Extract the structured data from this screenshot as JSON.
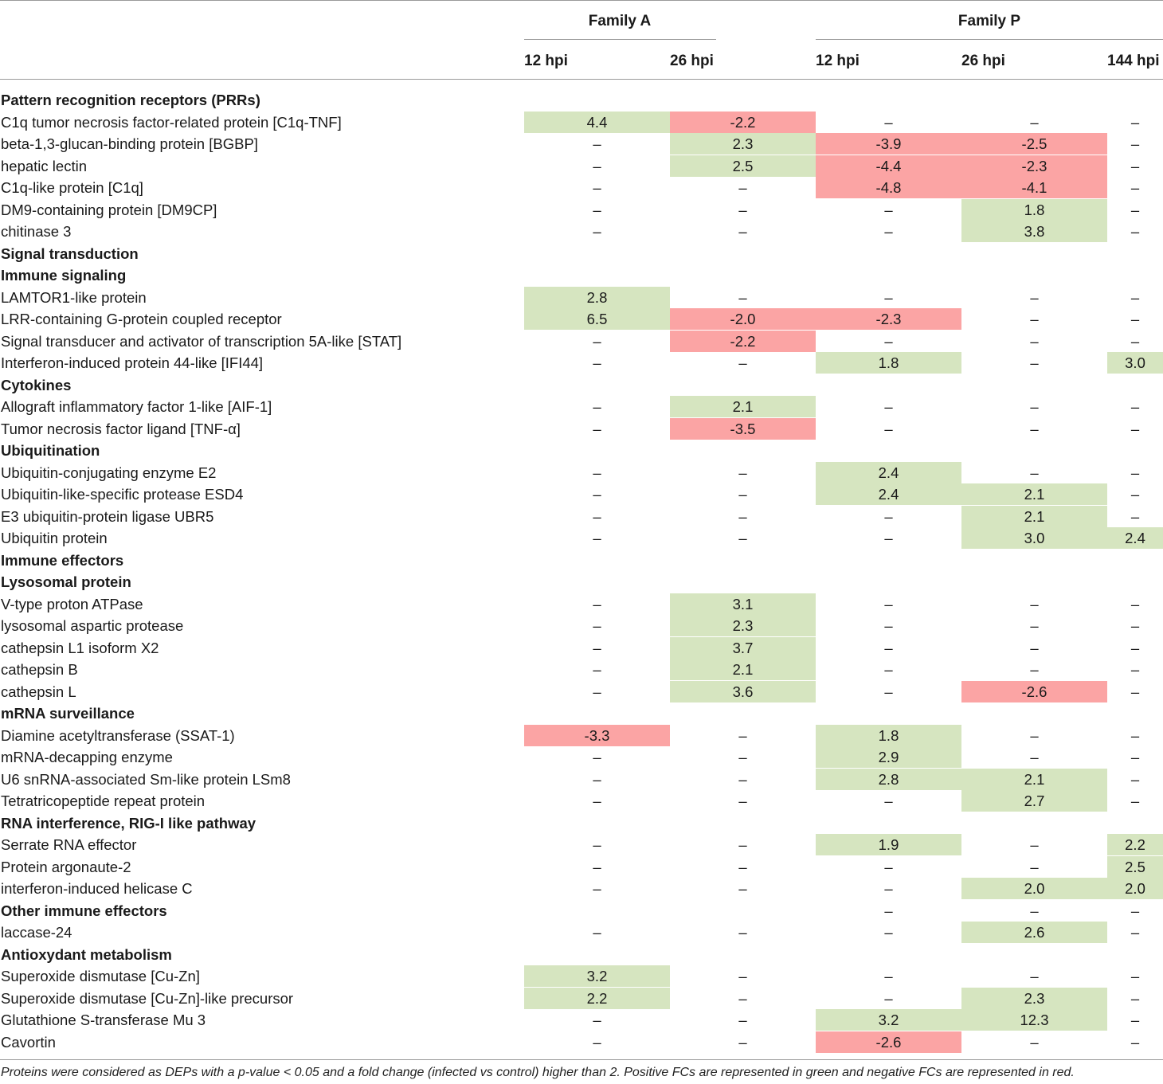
{
  "header": {
    "families": [
      {
        "label": "Family A"
      },
      {
        "label": "Family P"
      }
    ],
    "columns": [
      {
        "label": "12 hpi"
      },
      {
        "label": "26 hpi"
      },
      {
        "label": "12 hpi"
      },
      {
        "label": "26 hpi"
      },
      {
        "label": "144 hpi"
      }
    ]
  },
  "rows": [
    {
      "type": "category",
      "label": "Pattern recognition receptors (PRRs)",
      "cells": [
        null,
        null,
        null,
        null,
        null
      ]
    },
    {
      "type": "item",
      "label": "C1q tumor necrosis factor-related protein [C1q-TNF]",
      "cells": [
        {
          "v": "4.4",
          "s": "pos"
        },
        {
          "v": "-2.2",
          "s": "neg"
        },
        {
          "v": "–",
          "s": ""
        },
        {
          "v": "–",
          "s": ""
        },
        {
          "v": "–",
          "s": ""
        }
      ]
    },
    {
      "type": "item",
      "label": "beta-1,3-glucan-binding protein [BGBP]",
      "cells": [
        {
          "v": "–",
          "s": ""
        },
        {
          "v": "2.3",
          "s": "pos"
        },
        {
          "v": "-3.9",
          "s": "neg"
        },
        {
          "v": "-2.5",
          "s": "neg"
        },
        {
          "v": "–",
          "s": ""
        }
      ]
    },
    {
      "type": "item",
      "label": "hepatic lectin",
      "cells": [
        {
          "v": "–",
          "s": ""
        },
        {
          "v": "2.5",
          "s": "pos"
        },
        {
          "v": "-4.4",
          "s": "neg"
        },
        {
          "v": "-2.3",
          "s": "neg"
        },
        {
          "v": "–",
          "s": ""
        }
      ]
    },
    {
      "type": "item",
      "label": "C1q-like protein [C1q]",
      "cells": [
        {
          "v": "–",
          "s": ""
        },
        {
          "v": "–",
          "s": ""
        },
        {
          "v": "-4.8",
          "s": "neg"
        },
        {
          "v": "-4.1",
          "s": "neg"
        },
        {
          "v": "–",
          "s": ""
        }
      ]
    },
    {
      "type": "item",
      "label": "DM9-containing protein [DM9CP]",
      "cells": [
        {
          "v": "–",
          "s": ""
        },
        {
          "v": "–",
          "s": ""
        },
        {
          "v": "–",
          "s": ""
        },
        {
          "v": "1.8",
          "s": "pos"
        },
        {
          "v": "–",
          "s": ""
        }
      ]
    },
    {
      "type": "item",
      "label": "chitinase 3",
      "cells": [
        {
          "v": "–",
          "s": ""
        },
        {
          "v": "–",
          "s": ""
        },
        {
          "v": "–",
          "s": ""
        },
        {
          "v": "3.8",
          "s": "pos"
        },
        {
          "v": "–",
          "s": ""
        }
      ]
    },
    {
      "type": "category",
      "label": "Signal transduction",
      "cells": [
        null,
        null,
        null,
        null,
        null
      ]
    },
    {
      "type": "category",
      "label": "Immune signaling",
      "cells": [
        null,
        null,
        null,
        null,
        null
      ]
    },
    {
      "type": "item",
      "label": "LAMTOR1-like protein",
      "cells": [
        {
          "v": "2.8",
          "s": "pos"
        },
        {
          "v": "–",
          "s": ""
        },
        {
          "v": "–",
          "s": ""
        },
        {
          "v": "–",
          "s": ""
        },
        {
          "v": "–",
          "s": ""
        }
      ]
    },
    {
      "type": "item",
      "label": "LRR-containing G-protein coupled receptor",
      "cells": [
        {
          "v": "6.5",
          "s": "pos"
        },
        {
          "v": "-2.0",
          "s": "neg"
        },
        {
          "v": "-2.3",
          "s": "neg"
        },
        {
          "v": "–",
          "s": ""
        },
        {
          "v": "–",
          "s": ""
        }
      ]
    },
    {
      "type": "item",
      "label": "Signal transducer and activator of transcription 5A-like [STAT]",
      "cells": [
        {
          "v": "–",
          "s": ""
        },
        {
          "v": "-2.2",
          "s": "neg"
        },
        {
          "v": "–",
          "s": ""
        },
        {
          "v": "–",
          "s": ""
        },
        {
          "v": "–",
          "s": ""
        }
      ]
    },
    {
      "type": "item",
      "label": "Interferon-induced protein 44-like [IFI44]",
      "cells": [
        {
          "v": "–",
          "s": ""
        },
        {
          "v": "–",
          "s": ""
        },
        {
          "v": "1.8",
          "s": "pos"
        },
        {
          "v": "–",
          "s": ""
        },
        {
          "v": "3.0",
          "s": "pos"
        }
      ]
    },
    {
      "type": "category",
      "label": "Cytokines",
      "cells": [
        null,
        null,
        null,
        null,
        null
      ]
    },
    {
      "type": "item",
      "label": "Allograft inflammatory factor 1-like [AIF-1]",
      "cells": [
        {
          "v": "–",
          "s": ""
        },
        {
          "v": "2.1",
          "s": "pos"
        },
        {
          "v": "–",
          "s": ""
        },
        {
          "v": "–",
          "s": ""
        },
        {
          "v": "–",
          "s": ""
        }
      ]
    },
    {
      "type": "item",
      "label": "Tumor necrosis factor ligand [TNF-α]",
      "cells": [
        {
          "v": "–",
          "s": ""
        },
        {
          "v": "-3.5",
          "s": "neg"
        },
        {
          "v": "–",
          "s": ""
        },
        {
          "v": "–",
          "s": ""
        },
        {
          "v": "–",
          "s": ""
        }
      ]
    },
    {
      "type": "category",
      "label": "Ubiquitination",
      "cells": [
        null,
        null,
        null,
        null,
        null
      ]
    },
    {
      "type": "item",
      "label": "Ubiquitin-conjugating enzyme E2",
      "cells": [
        {
          "v": "–",
          "s": ""
        },
        {
          "v": "–",
          "s": ""
        },
        {
          "v": "2.4",
          "s": "pos"
        },
        {
          "v": "–",
          "s": ""
        },
        {
          "v": "–",
          "s": ""
        }
      ]
    },
    {
      "type": "item",
      "label": "Ubiquitin-like-specific protease ESD4",
      "cells": [
        {
          "v": "–",
          "s": ""
        },
        {
          "v": "–",
          "s": ""
        },
        {
          "v": "2.4",
          "s": "pos"
        },
        {
          "v": "2.1",
          "s": "pos"
        },
        {
          "v": "–",
          "s": ""
        }
      ]
    },
    {
      "type": "item",
      "label": "E3 ubiquitin-protein ligase UBR5",
      "cells": [
        {
          "v": "–",
          "s": ""
        },
        {
          "v": "–",
          "s": ""
        },
        {
          "v": "–",
          "s": ""
        },
        {
          "v": "2.1",
          "s": "pos"
        },
        {
          "v": "–",
          "s": ""
        }
      ]
    },
    {
      "type": "item",
      "label": "Ubiquitin protein",
      "cells": [
        {
          "v": "–",
          "s": ""
        },
        {
          "v": "–",
          "s": ""
        },
        {
          "v": "–",
          "s": ""
        },
        {
          "v": "3.0",
          "s": "pos"
        },
        {
          "v": "2.4",
          "s": "pos"
        }
      ]
    },
    {
      "type": "category",
      "label": "Immune effectors",
      "cells": [
        null,
        null,
        null,
        null,
        null
      ]
    },
    {
      "type": "category",
      "label": "Lysosomal protein",
      "cells": [
        null,
        null,
        null,
        null,
        null
      ]
    },
    {
      "type": "item",
      "label": "V-type proton ATPase",
      "cells": [
        {
          "v": "–",
          "s": ""
        },
        {
          "v": "3.1",
          "s": "pos"
        },
        {
          "v": "–",
          "s": ""
        },
        {
          "v": "–",
          "s": ""
        },
        {
          "v": "–",
          "s": ""
        }
      ]
    },
    {
      "type": "item",
      "label": "lysosomal aspartic protease",
      "cells": [
        {
          "v": "–",
          "s": ""
        },
        {
          "v": "2.3",
          "s": "pos"
        },
        {
          "v": "–",
          "s": ""
        },
        {
          "v": "–",
          "s": ""
        },
        {
          "v": "–",
          "s": ""
        }
      ]
    },
    {
      "type": "item",
      "label": "cathepsin L1 isoform X2",
      "cells": [
        {
          "v": "–",
          "s": ""
        },
        {
          "v": "3.7",
          "s": "pos"
        },
        {
          "v": "–",
          "s": ""
        },
        {
          "v": "–",
          "s": ""
        },
        {
          "v": "–",
          "s": ""
        }
      ]
    },
    {
      "type": "item",
      "label": "cathepsin B",
      "cells": [
        {
          "v": "–",
          "s": ""
        },
        {
          "v": "2.1",
          "s": "pos"
        },
        {
          "v": "–",
          "s": ""
        },
        {
          "v": "–",
          "s": ""
        },
        {
          "v": "–",
          "s": ""
        }
      ]
    },
    {
      "type": "item",
      "label": "cathepsin L",
      "cells": [
        {
          "v": "–",
          "s": ""
        },
        {
          "v": "3.6",
          "s": "pos"
        },
        {
          "v": "–",
          "s": ""
        },
        {
          "v": "-2.6",
          "s": "neg"
        },
        {
          "v": "–",
          "s": ""
        }
      ]
    },
    {
      "type": "category",
      "label": "mRNA surveillance",
      "cells": [
        null,
        null,
        null,
        null,
        null
      ]
    },
    {
      "type": "item",
      "label": "Diamine acetyltransferase (SSAT-1)",
      "cells": [
        {
          "v": "-3.3",
          "s": "neg"
        },
        {
          "v": "–",
          "s": ""
        },
        {
          "v": "1.8",
          "s": "pos"
        },
        {
          "v": "–",
          "s": ""
        },
        {
          "v": "–",
          "s": ""
        }
      ]
    },
    {
      "type": "item",
      "label": "mRNA-decapping enzyme",
      "cells": [
        {
          "v": "–",
          "s": ""
        },
        {
          "v": "–",
          "s": ""
        },
        {
          "v": "2.9",
          "s": "pos"
        },
        {
          "v": "–",
          "s": ""
        },
        {
          "v": "–",
          "s": ""
        }
      ]
    },
    {
      "type": "item",
      "label": "U6 snRNA-associated Sm-like protein LSm8",
      "cells": [
        {
          "v": "–",
          "s": ""
        },
        {
          "v": "–",
          "s": ""
        },
        {
          "v": "2.8",
          "s": "pos"
        },
        {
          "v": "2.1",
          "s": "pos"
        },
        {
          "v": "–",
          "s": ""
        }
      ]
    },
    {
      "type": "item",
      "label": "Tetratricopeptide repeat protein",
      "cells": [
        {
          "v": "–",
          "s": ""
        },
        {
          "v": "–",
          "s": ""
        },
        {
          "v": "–",
          "s": ""
        },
        {
          "v": "2.7",
          "s": "pos"
        },
        {
          "v": "–",
          "s": ""
        }
      ]
    },
    {
      "type": "category",
      "label": "RNA interference, RIG-I like pathway",
      "cells": [
        null,
        null,
        null,
        null,
        null
      ]
    },
    {
      "type": "item",
      "label": "Serrate RNA effector",
      "cells": [
        {
          "v": "–",
          "s": ""
        },
        {
          "v": "–",
          "s": ""
        },
        {
          "v": "1.9",
          "s": "pos"
        },
        {
          "v": "–",
          "s": ""
        },
        {
          "v": "2.2",
          "s": "pos"
        }
      ]
    },
    {
      "type": "item",
      "label": "Protein argonaute-2",
      "cells": [
        {
          "v": "–",
          "s": ""
        },
        {
          "v": "–",
          "s": ""
        },
        {
          "v": "–",
          "s": ""
        },
        {
          "v": "–",
          "s": ""
        },
        {
          "v": "2.5",
          "s": "pos"
        }
      ]
    },
    {
      "type": "item",
      "label": "interferon-induced helicase C",
      "cells": [
        {
          "v": "–",
          "s": ""
        },
        {
          "v": "–",
          "s": ""
        },
        {
          "v": "–",
          "s": ""
        },
        {
          "v": "2.0",
          "s": "pos"
        },
        {
          "v": "2.0",
          "s": "pos"
        }
      ]
    },
    {
      "type": "category",
      "label": "Other immune effectors",
      "cells": [
        null,
        null,
        {
          "v": "–",
          "s": ""
        },
        {
          "v": "–",
          "s": ""
        },
        {
          "v": "–",
          "s": ""
        }
      ]
    },
    {
      "type": "item",
      "label": "laccase-24",
      "cells": [
        {
          "v": "–",
          "s": ""
        },
        {
          "v": "–",
          "s": ""
        },
        {
          "v": "–",
          "s": ""
        },
        {
          "v": "2.6",
          "s": "pos"
        },
        {
          "v": "–",
          "s": ""
        }
      ]
    },
    {
      "type": "category",
      "label": "Antioxydant metabolism",
      "cells": [
        null,
        null,
        null,
        null,
        null
      ]
    },
    {
      "type": "item",
      "label": "Superoxide dismutase [Cu-Zn]",
      "cells": [
        {
          "v": "3.2",
          "s": "pos"
        },
        {
          "v": "–",
          "s": ""
        },
        {
          "v": "–",
          "s": ""
        },
        {
          "v": "–",
          "s": ""
        },
        {
          "v": "–",
          "s": ""
        }
      ]
    },
    {
      "type": "item",
      "label": "Superoxide dismutase [Cu-Zn]-like precursor",
      "cells": [
        {
          "v": "2.2",
          "s": "pos"
        },
        {
          "v": "–",
          "s": ""
        },
        {
          "v": "–",
          "s": ""
        },
        {
          "v": "2.3",
          "s": "pos"
        },
        {
          "v": "–",
          "s": ""
        }
      ]
    },
    {
      "type": "item",
      "label": "Glutathione S-transferase Mu 3",
      "cells": [
        {
          "v": "–",
          "s": ""
        },
        {
          "v": "–",
          "s": ""
        },
        {
          "v": "3.2",
          "s": "pos"
        },
        {
          "v": "12.3",
          "s": "pos"
        },
        {
          "v": "–",
          "s": ""
        }
      ]
    },
    {
      "type": "item",
      "label": "Cavortin",
      "cells": [
        {
          "v": "–",
          "s": ""
        },
        {
          "v": "–",
          "s": ""
        },
        {
          "v": "-2.6",
          "s": "neg"
        },
        {
          "v": "–",
          "s": ""
        },
        {
          "v": "–",
          "s": ""
        }
      ]
    }
  ],
  "footnote": "Proteins were considered as DEPs with a p-value < 0.05 and a fold change (infected vs control) higher than 2. Positive FCs are represented in green and negative FCs are represented in red.",
  "colors": {
    "positive": "#d6e5c0",
    "negative": "#fba4a4",
    "rule": "#9a9a9a"
  }
}
